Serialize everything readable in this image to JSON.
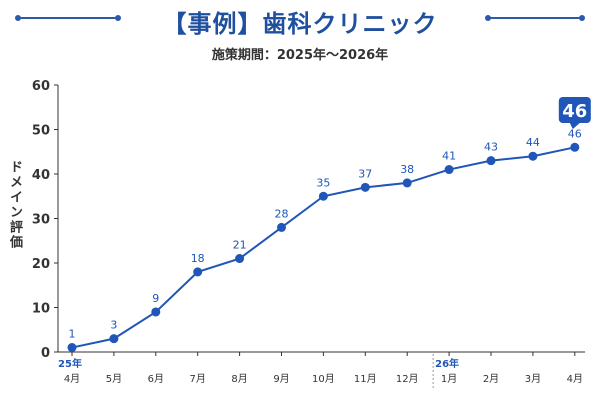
{
  "header": {
    "title": "【事例】歯科クリニック",
    "subtitle": "施策期間：2025年〜2026年"
  },
  "chart_data": {
    "type": "line",
    "title": "【事例】歯科クリニック",
    "subtitle": "施策期間：2025年〜2026年",
    "xlabel": "",
    "ylabel": "ドメイン評価",
    "categories": [
      "4月",
      "5月",
      "6月",
      "7月",
      "8月",
      "9月",
      "10月",
      "11月",
      "12月",
      "1月",
      "2月",
      "3月",
      "4月"
    ],
    "year_labels": [
      {
        "index": 0,
        "label": "25年"
      },
      {
        "index": 9,
        "label": "26年"
      }
    ],
    "series": [
      {
        "values": [
          1,
          3,
          9,
          18,
          21,
          28,
          35,
          37,
          38,
          41,
          43,
          44,
          46
        ]
      }
    ],
    "data_labels": [
      "1",
      "3",
      "9",
      "18",
      "21",
      "28",
      "35",
      "37",
      "38",
      "41",
      "43",
      "44",
      "46"
    ],
    "highlight": {
      "index": 12,
      "label": "46"
    },
    "ylim": [
      0,
      60
    ],
    "yticks": [
      "0",
      "10",
      "20",
      "30",
      "40",
      "50",
      "60"
    ],
    "grid": false,
    "colors": {
      "line": "#1f56b8",
      "point": "#1f56b8",
      "label": "#1f56b8",
      "axis": "#333333",
      "badge": "#1f56b8"
    }
  }
}
